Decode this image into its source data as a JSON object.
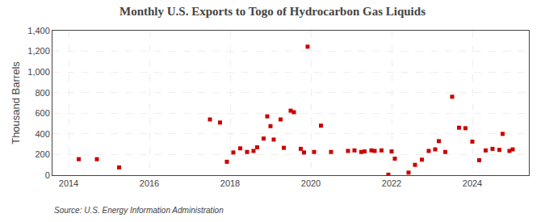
{
  "chart_data": {
    "type": "scatter",
    "title": "Monthly U.S. Exports to Togo of Hydrocarbon Gas Liquids",
    "ylabel": "Thousand Barrels",
    "annotations": [
      "Source: U.S. Energy Information Administration"
    ],
    "color": "#cc0000",
    "marker": "square",
    "grid": true,
    "xlim": [
      2013.6,
      2025.4
    ],
    "ylim": [
      0,
      1400
    ],
    "xticks": [
      2014,
      2016,
      2018,
      2020,
      2022,
      2024
    ],
    "yticks": [
      0,
      200,
      400,
      600,
      800,
      {
        "value": 1000,
        "label": "1,000"
      },
      {
        "value": 1200,
        "label": "1,200"
      },
      {
        "value": 1400,
        "label": "1,400"
      }
    ],
    "x": [
      2014.25,
      2014.7,
      2015.25,
      2017.5,
      2017.75,
      2017.92,
      2018.08,
      2018.25,
      2018.42,
      2018.58,
      2018.67,
      2018.83,
      2018.92,
      2019.0,
      2019.08,
      2019.25,
      2019.33,
      2019.5,
      2019.58,
      2019.75,
      2019.83,
      2019.92,
      2020.08,
      2020.25,
      2020.5,
      2020.92,
      2021.08,
      2021.25,
      2021.33,
      2021.5,
      2021.58,
      2021.75,
      2021.92,
      2022.0,
      2022.08,
      2022.42,
      2022.58,
      2022.75,
      2022.92,
      2023.08,
      2023.17,
      2023.33,
      2023.5,
      2023.67,
      2023.83,
      2024.0,
      2024.17,
      2024.33,
      2024.5,
      2024.67,
      2024.75,
      2024.92,
      2025.0
    ],
    "values": [
      155,
      155,
      75,
      540,
      510,
      130,
      220,
      260,
      225,
      235,
      270,
      355,
      570,
      475,
      345,
      540,
      265,
      625,
      610,
      255,
      220,
      1245,
      225,
      480,
      225,
      235,
      240,
      225,
      230,
      240,
      235,
      240,
      5,
      230,
      160,
      25,
      100,
      150,
      235,
      250,
      330,
      225,
      760,
      460,
      455,
      325,
      145,
      240,
      255,
      245,
      400,
      235,
      250
    ]
  }
}
